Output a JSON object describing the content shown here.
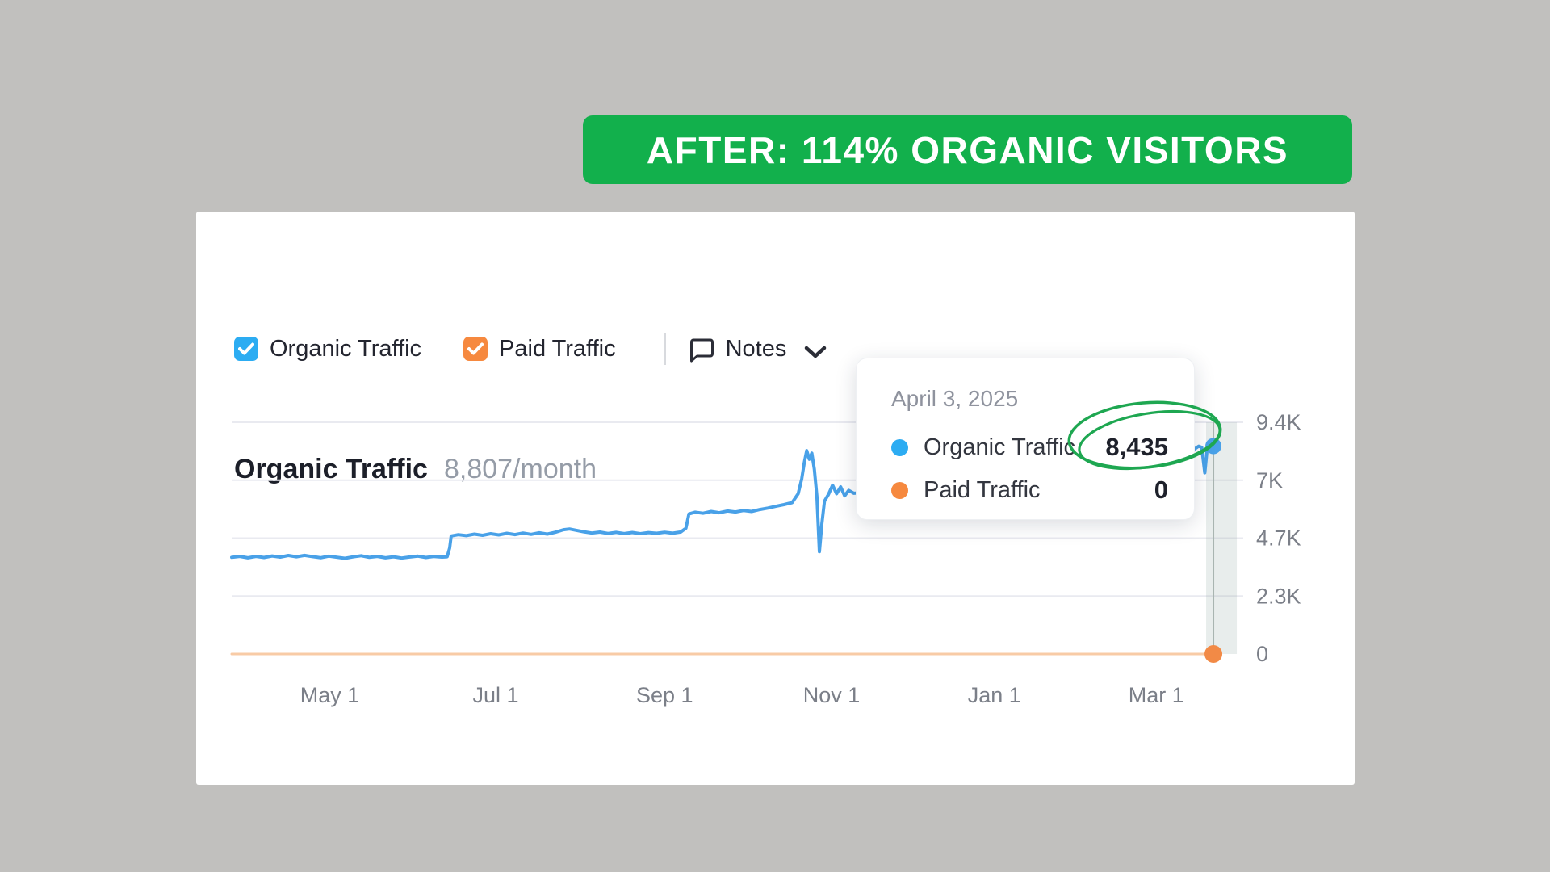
{
  "banner": {
    "text": "AFTER: 114% ORGANIC VISITORS",
    "bg": "#12b04c"
  },
  "card": {
    "title": "Organic Traffic",
    "subtitle": "8,807/month",
    "legend": [
      {
        "label": "Organic Traffic",
        "checked": true,
        "color": "#2cacf2"
      },
      {
        "label": "Paid Traffic",
        "checked": true,
        "color": "#f6893f"
      }
    ],
    "notes_label": "Notes"
  },
  "tooltip": {
    "date": "April 3, 2025",
    "rows": [
      {
        "label": "Organic Traffic",
        "value": "8,435",
        "dot_color": "#2cacf2",
        "circled": true
      },
      {
        "label": "Paid Traffic",
        "value": "0",
        "dot_color": "#f6893f",
        "circled": false
      }
    ]
  },
  "colors": {
    "page_bg": "#c1c0be",
    "card_bg": "#ffffff",
    "banner_green": "#12b04c",
    "organic_line": "#49a1e8",
    "paid_line_faded": "#f8cba6",
    "paid_dot": "#f2withheld",
    "gridline": "#e9eaf0",
    "axis_text": "#7b7f88",
    "annotation_green": "#1ea751",
    "crosshair_band": "rgba(150,175,168,0.22)",
    "crosshair_line": "#a9b5b1"
  },
  "chart_data": {
    "type": "line",
    "title": "Organic Traffic",
    "rate_label": "8,807/month",
    "ylim": [
      0,
      9400
    ],
    "grid": true,
    "legend_position": "top-left",
    "y_ticks": [
      {
        "label": "9.4K",
        "v": 9400
      },
      {
        "label": "7K",
        "v": 7050
      },
      {
        "label": "4.7K",
        "v": 4700
      },
      {
        "label": "2.3K",
        "v": 2350
      },
      {
        "label": "0",
        "v": 0
      }
    ],
    "x_ticks": [
      {
        "label": "May 1",
        "f": 0.097
      },
      {
        "label": "Jul 1",
        "f": 0.261
      },
      {
        "label": "Sep 1",
        "f": 0.428
      },
      {
        "label": "Nov 1",
        "f": 0.593
      },
      {
        "label": "Jan 1",
        "f": 0.754
      },
      {
        "label": "Mar 1",
        "f": 0.914
      }
    ],
    "hover": {
      "date": "April 3, 2025",
      "f": 0.9705,
      "organic": 8435,
      "paid": 0
    },
    "series": [
      {
        "name": "Organic Traffic",
        "color": "#49a1e8",
        "width": 4,
        "end_dot": {
          "f": 0.9705,
          "v": 8435,
          "r": 10
        },
        "points": [
          [
            0.0,
            3920
          ],
          [
            0.008,
            3960
          ],
          [
            0.016,
            3900
          ],
          [
            0.024,
            3955
          ],
          [
            0.032,
            3915
          ],
          [
            0.04,
            3975
          ],
          [
            0.048,
            3930
          ],
          [
            0.056,
            3995
          ],
          [
            0.064,
            3945
          ],
          [
            0.072,
            4000
          ],
          [
            0.08,
            3950
          ],
          [
            0.088,
            3905
          ],
          [
            0.096,
            3970
          ],
          [
            0.104,
            3925
          ],
          [
            0.112,
            3880
          ],
          [
            0.12,
            3940
          ],
          [
            0.128,
            3985
          ],
          [
            0.136,
            3920
          ],
          [
            0.144,
            3960
          ],
          [
            0.152,
            3900
          ],
          [
            0.16,
            3945
          ],
          [
            0.168,
            3890
          ],
          [
            0.176,
            3935
          ],
          [
            0.184,
            3970
          ],
          [
            0.192,
            3915
          ],
          [
            0.2,
            3955
          ],
          [
            0.208,
            3930
          ],
          [
            0.213,
            3945
          ],
          [
            0.2155,
            4300
          ],
          [
            0.217,
            4790
          ],
          [
            0.224,
            4840
          ],
          [
            0.232,
            4800
          ],
          [
            0.24,
            4865
          ],
          [
            0.248,
            4815
          ],
          [
            0.256,
            4880
          ],
          [
            0.264,
            4830
          ],
          [
            0.272,
            4895
          ],
          [
            0.28,
            4845
          ],
          [
            0.288,
            4905
          ],
          [
            0.296,
            4855
          ],
          [
            0.304,
            4915
          ],
          [
            0.312,
            4865
          ],
          [
            0.32,
            4940
          ],
          [
            0.328,
            5040
          ],
          [
            0.334,
            5070
          ],
          [
            0.34,
            5020
          ],
          [
            0.348,
            4960
          ],
          [
            0.356,
            4905
          ],
          [
            0.364,
            4945
          ],
          [
            0.372,
            4890
          ],
          [
            0.38,
            4935
          ],
          [
            0.388,
            4885
          ],
          [
            0.396,
            4930
          ],
          [
            0.404,
            4880
          ],
          [
            0.412,
            4925
          ],
          [
            0.42,
            4895
          ],
          [
            0.428,
            4940
          ],
          [
            0.436,
            4900
          ],
          [
            0.444,
            4950
          ],
          [
            0.449,
            5100
          ],
          [
            0.452,
            5680
          ],
          [
            0.458,
            5750
          ],
          [
            0.466,
            5710
          ],
          [
            0.474,
            5780
          ],
          [
            0.482,
            5730
          ],
          [
            0.49,
            5800
          ],
          [
            0.498,
            5760
          ],
          [
            0.506,
            5820
          ],
          [
            0.514,
            5780
          ],
          [
            0.522,
            5860
          ],
          [
            0.53,
            5920
          ],
          [
            0.538,
            5990
          ],
          [
            0.546,
            6060
          ],
          [
            0.554,
            6140
          ],
          [
            0.56,
            6500
          ],
          [
            0.5635,
            7100
          ],
          [
            0.566,
            7750
          ],
          [
            0.5685,
            8250
          ],
          [
            0.571,
            7900
          ],
          [
            0.5735,
            8150
          ],
          [
            0.576,
            7500
          ],
          [
            0.5785,
            6400
          ],
          [
            0.581,
            4150
          ],
          [
            0.5835,
            5300
          ],
          [
            0.586,
            6200
          ],
          [
            0.59,
            6480
          ],
          [
            0.594,
            6850
          ],
          [
            0.598,
            6500
          ],
          [
            0.602,
            6780
          ],
          [
            0.606,
            6420
          ],
          [
            0.61,
            6640
          ],
          [
            0.615,
            6520
          ],
          [
            0.63,
            6560
          ],
          [
            0.648,
            6640
          ],
          [
            0.666,
            6600
          ],
          [
            0.684,
            6720
          ],
          [
            0.702,
            6780
          ],
          [
            0.72,
            6860
          ],
          [
            0.738,
            6940
          ],
          [
            0.756,
            7020
          ],
          [
            0.774,
            7090
          ],
          [
            0.792,
            7160
          ],
          [
            0.81,
            7240
          ],
          [
            0.828,
            7330
          ],
          [
            0.846,
            7420
          ],
          [
            0.864,
            7520
          ],
          [
            0.882,
            7630
          ],
          [
            0.9,
            7750
          ],
          [
            0.918,
            7880
          ],
          [
            0.936,
            8020
          ],
          [
            0.945,
            8150
          ],
          [
            0.952,
            8320
          ],
          [
            0.956,
            8430
          ],
          [
            0.959,
            8380
          ],
          [
            0.962,
            7350
          ],
          [
            0.9645,
            8380
          ],
          [
            0.968,
            8300
          ],
          [
            0.9705,
            8435
          ]
        ]
      },
      {
        "name": "Paid Traffic",
        "color": "#f8cba6",
        "width": 3,
        "end_dot": {
          "f": 0.9705,
          "v": 0,
          "r": 11,
          "color": "#f28a46"
        },
        "points": [
          [
            0.0,
            0
          ],
          [
            0.9705,
            0
          ]
        ]
      }
    ]
  }
}
